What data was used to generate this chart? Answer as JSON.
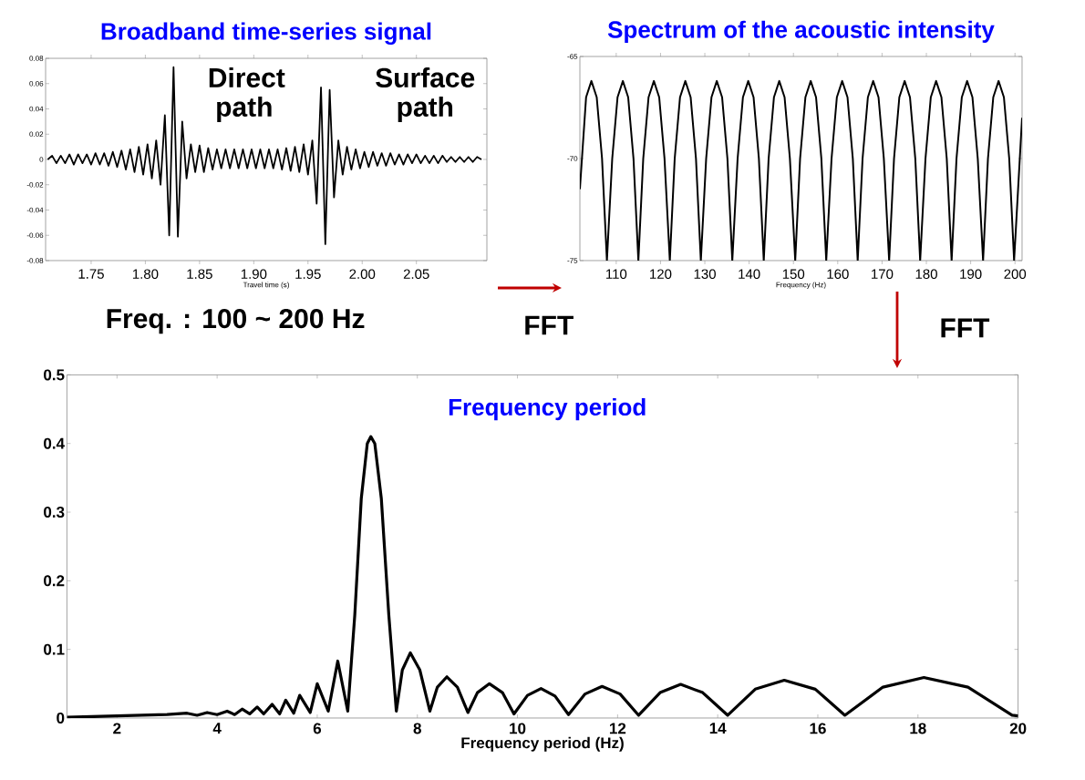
{
  "chart_data": [
    {
      "type": "line",
      "title": "Broadband time-series signal",
      "xlabel": "Travel time (s)",
      "annotations": [
        "Direct path",
        "Surface path",
        "Freq. : 100 ~ 200 Hz",
        "FFT"
      ],
      "xlim": [
        1.708,
        2.115
      ],
      "ylim": [
        -0.08,
        0.08
      ],
      "xticks": [
        1.75,
        {
          "value": 1.8,
          "label": "1.80"
        },
        1.85,
        {
          "value": 1.9,
          "label": "1.90"
        },
        1.95,
        {
          "value": 2.0,
          "label": "2.00"
        },
        2.05
      ],
      "yticks": [
        -0.08,
        -0.06,
        -0.04,
        -0.02,
        0,
        0.02,
        0.04,
        0.06,
        0.08
      ],
      "series": [
        {
          "color": "#000000",
          "x": [
            1.71,
            1.714,
            1.718,
            1.722,
            1.726,
            1.73,
            1.734,
            1.738,
            1.742,
            1.746,
            1.75,
            1.754,
            1.758,
            1.762,
            1.766,
            1.77,
            1.774,
            1.778,
            1.782,
            1.786,
            1.79,
            1.794,
            1.798,
            1.802,
            1.806,
            1.81,
            1.814,
            1.818,
            1.822,
            1.826,
            1.83,
            1.834,
            1.838,
            1.842,
            1.846,
            1.85,
            1.854,
            1.858,
            1.862,
            1.866,
            1.87,
            1.874,
            1.878,
            1.882,
            1.886,
            1.89,
            1.894,
            1.898,
            1.902,
            1.906,
            1.91,
            1.914,
            1.918,
            1.922,
            1.926,
            1.93,
            1.934,
            1.938,
            1.942,
            1.946,
            1.95,
            1.954,
            1.958,
            1.962,
            1.966,
            1.97,
            1.974,
            1.978,
            1.982,
            1.986,
            1.99,
            1.994,
            1.998,
            2.002,
            2.006,
            2.01,
            2.014,
            2.018,
            2.022,
            2.026,
            2.03,
            2.034,
            2.038,
            2.042,
            2.046,
            2.05,
            2.054,
            2.058,
            2.062,
            2.066,
            2.07,
            2.074,
            2.078,
            2.082,
            2.086,
            2.09,
            2.094,
            2.098,
            2.102,
            2.106,
            2.11
          ],
          "values": [
            0,
            0.003,
            -0.003,
            0.003,
            -0.003,
            0.004,
            -0.004,
            0.004,
            -0.003,
            0.004,
            -0.004,
            0.005,
            -0.004,
            0.005,
            -0.005,
            0.006,
            -0.006,
            0.007,
            -0.008,
            0.008,
            -0.01,
            0.01,
            -0.012,
            0.012,
            -0.015,
            0.015,
            -0.02,
            0.035,
            -0.06,
            0.073,
            -0.061,
            0.03,
            -0.015,
            0.012,
            -0.01,
            0.011,
            -0.01,
            0.009,
            -0.008,
            0.008,
            -0.007,
            0.008,
            -0.007,
            0.008,
            -0.007,
            0.008,
            -0.007,
            0.008,
            -0.007,
            0.008,
            -0.007,
            0.008,
            -0.007,
            0.008,
            -0.008,
            0.009,
            -0.009,
            0.01,
            -0.01,
            0.012,
            -0.012,
            0.015,
            -0.035,
            0.057,
            -0.067,
            0.055,
            -0.03,
            0.015,
            -0.012,
            0.01,
            -0.008,
            0.008,
            -0.007,
            0.006,
            -0.006,
            0.006,
            -0.005,
            0.005,
            -0.005,
            0.005,
            -0.004,
            0.004,
            -0.004,
            0.004,
            -0.003,
            0.004,
            -0.003,
            0.003,
            -0.003,
            0.003,
            -0.003,
            0.003,
            -0.002,
            0.002,
            -0.002,
            0.002,
            -0.002,
            0.002,
            -0.002,
            0.002,
            0
          ]
        }
      ]
    },
    {
      "type": "line",
      "title": "Spectrum of the acoustic intensity",
      "xlabel": "Frequency (Hz)",
      "annotations": [
        "FFT"
      ],
      "xlim": [
        101.8,
        201.6
      ],
      "ylim": [
        -75,
        -65
      ],
      "xticks": [
        110,
        120,
        130,
        140,
        150,
        160,
        170,
        180,
        190,
        200
      ],
      "yticks": [
        -75,
        -70,
        -65
      ],
      "series": [
        {
          "color": "#000000",
          "x": [
            101.8,
            103.2,
            104.4,
            105.6,
            106.8,
            107.9,
            109.1,
            110.3,
            111.5,
            112.7,
            113.9,
            115.0,
            116.1,
            117.3,
            118.5,
            119.7,
            120.9,
            122.1,
            123.2,
            124.4,
            125.6,
            126.8,
            128.0,
            129.1,
            130.3,
            131.5,
            132.7,
            133.9,
            135.1,
            136.2,
            137.4,
            138.6,
            139.8,
            141.0,
            142.2,
            143.3,
            144.4,
            145.6,
            146.8,
            148.0,
            149.2,
            150.4,
            151.5,
            152.7,
            153.9,
            155.1,
            156.3,
            157.4,
            158.6,
            159.8,
            161.0,
            162.2,
            163.4,
            164.5,
            165.6,
            166.8,
            168.0,
            169.2,
            170.4,
            171.6,
            172.7,
            173.9,
            175.1,
            176.3,
            177.5,
            178.6,
            179.8,
            181.0,
            182.2,
            183.4,
            184.6,
            185.7,
            186.8,
            188.0,
            189.2,
            190.4,
            191.6,
            192.8,
            193.9,
            195.1,
            196.3,
            197.5,
            198.7,
            199.8,
            201.6
          ],
          "values": [
            -71.5,
            -67.0,
            -66.2,
            -67.0,
            -70.0,
            -75,
            -70.0,
            -67.0,
            -66.2,
            -67.0,
            -70.0,
            -75,
            -70.0,
            -67.0,
            -66.2,
            -67.0,
            -70.0,
            -75,
            -70.0,
            -67.0,
            -66.2,
            -67.0,
            -70.0,
            -75,
            -70.0,
            -67.0,
            -66.2,
            -67.0,
            -70.0,
            -75,
            -70.0,
            -67.0,
            -66.2,
            -67.0,
            -70.0,
            -75,
            -70.0,
            -67.0,
            -66.2,
            -67.0,
            -70.0,
            -75,
            -70.0,
            -67.0,
            -66.2,
            -67.0,
            -70.0,
            -75,
            -70.0,
            -67.0,
            -66.2,
            -67.0,
            -70.0,
            -75,
            -70.0,
            -67.0,
            -66.2,
            -67.0,
            -70.0,
            -75,
            -70.0,
            -67.0,
            -66.2,
            -67.0,
            -70.0,
            -75,
            -70.0,
            -67.0,
            -66.2,
            -67.0,
            -70.0,
            -75,
            -70.0,
            -67.0,
            -66.2,
            -67.0,
            -70.0,
            -75,
            -70.0,
            -67.0,
            -66.2,
            -67.0,
            -70.0,
            -75,
            -68.0
          ]
        }
      ]
    },
    {
      "type": "line",
      "title": "Frequency period",
      "xlabel": "Frequency period (Hz)",
      "xlim": [
        1,
        20
      ],
      "ylim": [
        0,
        0.5
      ],
      "xticks": [
        2,
        4,
        6,
        8,
        10,
        12,
        14,
        16,
        18,
        20
      ],
      "yticks": [
        0,
        0.1,
        0.2,
        0.3,
        0.4,
        0.5
      ],
      "series": [
        {
          "color": "#000000",
          "x": [
            1,
            1.5,
            2,
            2.5,
            3.0,
            3.4,
            3.6,
            3.8,
            4.0,
            4.2,
            4.35,
            4.5,
            4.65,
            4.8,
            4.93,
            5.1,
            5.25,
            5.37,
            5.53,
            5.65,
            5.86,
            6.0,
            6.22,
            6.41,
            6.61,
            6.75,
            6.88,
            7.0,
            7.07,
            7.15,
            7.28,
            7.43,
            7.58,
            7.7,
            7.86,
            8.05,
            8.25,
            8.4,
            8.59,
            8.8,
            9.01,
            9.2,
            9.44,
            9.7,
            9.93,
            10.2,
            10.47,
            10.75,
            11.02,
            11.35,
            11.69,
            12.05,
            12.42,
            12.85,
            13.26,
            13.7,
            14.2,
            14.75,
            15.33,
            15.95,
            16.54,
            17.3,
            18.12,
            19.0,
            19.88,
            20
          ],
          "values": [
            0.001,
            0.002,
            0.003,
            0.004,
            0.005,
            0.007,
            0.004,
            0.008,
            0.005,
            0.01,
            0.005,
            0.013,
            0.006,
            0.016,
            0.006,
            0.02,
            0.006,
            0.026,
            0.007,
            0.033,
            0.008,
            0.05,
            0.01,
            0.083,
            0.01,
            0.15,
            0.32,
            0.4,
            0.41,
            0.4,
            0.32,
            0.15,
            0.01,
            0.07,
            0.095,
            0.07,
            0.01,
            0.045,
            0.06,
            0.045,
            0.008,
            0.037,
            0.05,
            0.037,
            0.006,
            0.033,
            0.043,
            0.032,
            0.005,
            0.035,
            0.046,
            0.035,
            0.004,
            0.037,
            0.049,
            0.037,
            0.004,
            0.042,
            0.055,
            0.042,
            0.004,
            0.045,
            0.059,
            0.045,
            0.004,
            0.003
          ]
        }
      ]
    }
  ]
}
